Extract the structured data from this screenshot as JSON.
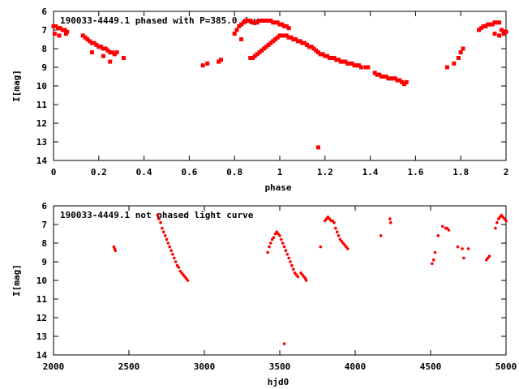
{
  "colors": {
    "points": "#ff0000",
    "axes": "#000000",
    "background": "#ffffff"
  },
  "chart_data": [
    {
      "type": "scatter",
      "title": "190033-4449.1 phased with P=385.0 day",
      "xlabel": "phase",
      "ylabel": "I[mag]",
      "xlim": [
        0,
        2
      ],
      "ylim": [
        14,
        6
      ],
      "y_reversed": true,
      "grid": false,
      "x_ticks": [
        "0",
        "0.2",
        "0.4",
        "0.6",
        "0.8",
        "1",
        "1.2",
        "1.4",
        "1.6",
        "1.8",
        "2"
      ],
      "y_ticks": [
        "6",
        "7",
        "8",
        "9",
        "10",
        "11",
        "12",
        "13",
        "14"
      ],
      "series": [
        {
          "x": [
            0.0,
            0.01,
            0.02,
            0.03,
            0.04,
            0.05,
            0.06,
            0.005,
            0.025,
            0.055,
            0.13,
            0.14,
            0.15,
            0.16,
            0.17,
            0.18,
            0.19,
            0.2,
            0.21,
            0.22,
            0.23,
            0.24,
            0.25,
            0.26,
            0.27,
            0.28,
            0.17,
            0.25,
            0.22,
            0.31,
            0.66,
            0.68,
            0.73,
            0.74,
            0.8,
            0.81,
            0.82,
            0.83,
            0.84,
            0.85,
            0.86,
            0.87,
            0.88,
            0.89,
            0.9,
            0.91,
            0.92,
            0.93,
            0.94,
            0.95,
            0.96,
            0.97,
            0.98,
            0.99,
            1.0,
            1.01,
            1.02,
            1.03,
            1.04,
            0.83,
            0.87,
            0.88,
            0.89,
            0.9,
            0.91,
            0.92,
            0.93,
            0.94,
            0.95,
            0.96,
            0.97,
            0.98,
            0.99,
            1.0,
            1.01,
            1.02,
            1.03,
            1.04,
            1.05,
            1.06,
            1.07,
            1.08,
            1.09,
            1.1,
            1.11,
            1.12,
            1.13,
            1.14,
            1.15,
            1.16,
            1.17,
            1.18,
            1.19,
            1.2,
            1.21,
            1.22,
            1.23,
            1.24,
            1.25,
            1.26,
            1.27,
            1.28,
            1.29,
            1.3,
            1.31,
            1.32,
            1.33,
            1.34,
            1.35,
            1.36,
            1.38,
            1.39,
            1.42,
            1.43,
            1.44,
            1.45,
            1.46,
            1.47,
            1.48,
            1.49,
            1.5,
            1.51,
            1.52,
            1.53,
            1.54,
            1.55,
            1.56,
            1.17,
            1.74,
            1.77,
            1.79,
            1.8,
            1.81,
            1.88,
            1.89,
            1.9,
            1.91,
            1.92,
            1.93,
            1.94,
            1.95,
            1.96,
            1.97,
            1.98,
            1.99,
            2.0,
            1.95,
            1.97,
            1.99
          ],
          "y": [
            6.8,
            6.8,
            6.9,
            6.9,
            7.0,
            7.0,
            7.1,
            7.2,
            7.3,
            7.2,
            7.3,
            7.4,
            7.5,
            7.6,
            7.7,
            7.7,
            7.8,
            7.9,
            7.9,
            8.0,
            8.0,
            8.1,
            8.2,
            8.2,
            8.3,
            8.2,
            8.2,
            8.7,
            8.4,
            8.5,
            8.9,
            8.8,
            8.7,
            8.6,
            7.2,
            7.0,
            6.8,
            6.7,
            6.6,
            6.5,
            6.5,
            6.5,
            6.6,
            6.6,
            6.6,
            6.5,
            6.5,
            6.5,
            6.5,
            6.5,
            6.5,
            6.6,
            6.6,
            6.6,
            6.7,
            6.7,
            6.8,
            6.8,
            6.9,
            7.5,
            8.5,
            8.5,
            8.4,
            8.3,
            8.2,
            8.1,
            8.0,
            7.9,
            7.8,
            7.7,
            7.6,
            7.5,
            7.4,
            7.3,
            7.3,
            7.3,
            7.3,
            7.4,
            7.4,
            7.5,
            7.5,
            7.6,
            7.6,
            7.7,
            7.7,
            7.8,
            7.9,
            7.9,
            8.0,
            8.1,
            8.2,
            8.3,
            8.3,
            8.4,
            8.4,
            8.5,
            8.5,
            8.5,
            8.6,
            8.6,
            8.7,
            8.7,
            8.7,
            8.8,
            8.8,
            8.8,
            8.9,
            8.9,
            8.9,
            9.0,
            9.0,
            9.0,
            9.3,
            9.4,
            9.4,
            9.5,
            9.5,
            9.5,
            9.6,
            9.6,
            9.6,
            9.6,
            9.7,
            9.7,
            9.8,
            9.9,
            9.8,
            13.3,
            9.0,
            8.8,
            8.5,
            8.2,
            8.0,
            7.0,
            6.9,
            6.8,
            6.8,
            6.7,
            6.7,
            6.7,
            6.6,
            6.6,
            6.6,
            7.0,
            7.1,
            7.1,
            7.2,
            7.3,
            7.2
          ],
          "marker": "square"
        }
      ]
    },
    {
      "type": "scatter",
      "title": "190033-4449.1 not phased light curve",
      "xlabel": "hjd0",
      "ylabel": "I[mag]",
      "xlim": [
        2000,
        5000
      ],
      "ylim": [
        14,
        6
      ],
      "y_reversed": true,
      "grid": false,
      "x_ticks": [
        "2000",
        "2500",
        "3000",
        "3500",
        "4000",
        "4500",
        "5000"
      ],
      "y_ticks": [
        "6",
        "7",
        "8",
        "9",
        "10",
        "11",
        "12",
        "13",
        "14"
      ],
      "series": [
        {
          "x": [
            2400,
            2405,
            2410,
            2690,
            2700,
            2710,
            2720,
            2730,
            2740,
            2750,
            2760,
            2770,
            2780,
            2790,
            2800,
            2810,
            2820,
            2830,
            2840,
            2850,
            2860,
            2870,
            2880,
            2890,
            3420,
            3430,
            3440,
            3450,
            3460,
            3470,
            3480,
            3490,
            3500,
            3510,
            3520,
            3530,
            3540,
            3550,
            3560,
            3570,
            3580,
            3590,
            3600,
            3610,
            3620,
            3640,
            3650,
            3660,
            3670,
            3675,
            3530,
            3770,
            3800,
            3810,
            3820,
            3830,
            3840,
            3850,
            3860,
            3870,
            3880,
            3890,
            3900,
            3910,
            3920,
            3930,
            3940,
            3950,
            4170,
            4230,
            4235,
            4510,
            4520,
            4530,
            4550,
            4580,
            4600,
            4610,
            4620,
            4680,
            4710,
            4720,
            4750,
            4870,
            4880,
            4890,
            4930,
            4940,
            4950,
            4960,
            4970,
            4980,
            4990,
            5000
          ],
          "y": [
            8.2,
            8.3,
            8.4,
            6.5,
            6.7,
            6.9,
            7.2,
            7.4,
            7.6,
            7.8,
            8.0,
            8.2,
            8.4,
            8.6,
            8.8,
            9.0,
            9.2,
            9.3,
            9.5,
            9.6,
            9.7,
            9.8,
            9.9,
            10.0,
            8.5,
            8.2,
            8.0,
            7.8,
            7.7,
            7.5,
            7.4,
            7.5,
            7.6,
            7.8,
            8.0,
            8.2,
            8.4,
            8.6,
            8.8,
            9.0,
            9.2,
            9.4,
            9.6,
            9.7,
            9.8,
            9.6,
            9.7,
            9.8,
            9.9,
            10.0,
            13.4,
            8.2,
            6.8,
            6.7,
            6.6,
            6.7,
            6.8,
            6.8,
            6.9,
            7.2,
            7.4,
            7.6,
            7.8,
            7.9,
            8.0,
            8.1,
            8.2,
            8.3,
            7.6,
            6.7,
            6.9,
            9.1,
            8.9,
            8.5,
            7.6,
            7.1,
            7.2,
            7.2,
            7.3,
            8.2,
            8.3,
            8.8,
            8.3,
            8.9,
            8.8,
            8.7,
            7.2,
            6.9,
            6.7,
            6.6,
            6.5,
            6.6,
            6.7,
            6.8
          ],
          "marker": "dot"
        }
      ]
    }
  ]
}
